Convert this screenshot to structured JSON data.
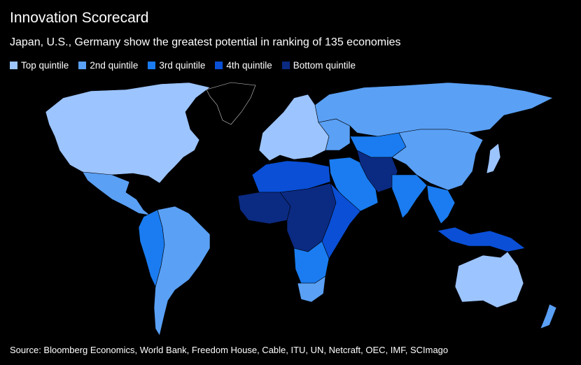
{
  "title": "Innovation Scorecard",
  "subtitle": "Japan, U.S., Germany show the greatest potential in ranking of 135 economies",
  "legend": [
    {
      "label": "Top quintile",
      "color": "#9cc4ff"
    },
    {
      "label": "2nd quintile",
      "color": "#5aa0f5"
    },
    {
      "label": "3rd quintile",
      "color": "#1a7cf0"
    },
    {
      "label": "4th quintile",
      "color": "#0a4fd6"
    },
    {
      "label": "Bottom quintile",
      "color": "#0b2a82"
    }
  ],
  "no_data_color": "#000000",
  "regions": [
    {
      "name": "north-america",
      "quintile": 0
    },
    {
      "name": "greenland",
      "quintile": -1
    },
    {
      "name": "mexico-central-america",
      "quintile": 1
    },
    {
      "name": "south-america",
      "quintile": 1
    },
    {
      "name": "andes",
      "quintile": 2
    },
    {
      "name": "europe",
      "quintile": 0
    },
    {
      "name": "eastern-europe",
      "quintile": 1
    },
    {
      "name": "russia",
      "quintile": 1
    },
    {
      "name": "central-asia",
      "quintile": 2
    },
    {
      "name": "china",
      "quintile": 1
    },
    {
      "name": "japan",
      "quintile": 0
    },
    {
      "name": "middle-east",
      "quintile": 2
    },
    {
      "name": "iran-pakistan",
      "quintile": 4
    },
    {
      "name": "india",
      "quintile": 2
    },
    {
      "name": "southeast-asia",
      "quintile": 2
    },
    {
      "name": "indonesia",
      "quintile": 3
    },
    {
      "name": "north-africa",
      "quintile": 3
    },
    {
      "name": "west-africa",
      "quintile": 4
    },
    {
      "name": "central-africa",
      "quintile": 4
    },
    {
      "name": "east-africa",
      "quintile": 3
    },
    {
      "name": "southern-africa",
      "quintile": 2
    },
    {
      "name": "south-africa",
      "quintile": 1
    },
    {
      "name": "australia",
      "quintile": 0
    },
    {
      "name": "new-zealand",
      "quintile": 1
    }
  ],
  "source": "Source: Bloomberg Economics, World Bank, Freedom House, Cable, ITU, UN, Netcraft, OEC, IMF, SCImago"
}
